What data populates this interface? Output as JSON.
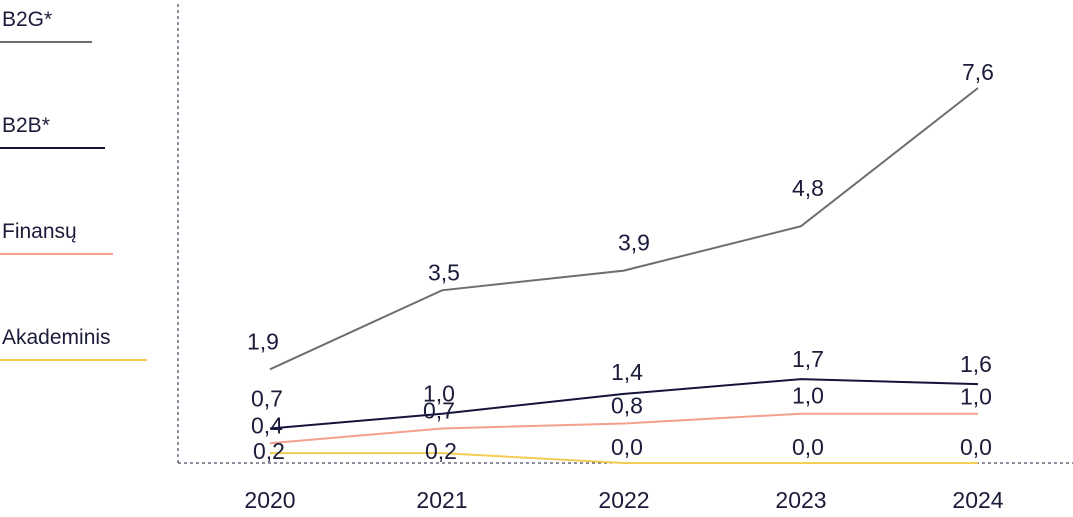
{
  "chart_data": {
    "type": "line",
    "categories": [
      "2020",
      "2021",
      "2022",
      "2023",
      "2024"
    ],
    "series": [
      {
        "name": "B2G*",
        "color": "#6e6e6e",
        "values": [
          1.9,
          3.5,
          3.9,
          4.8,
          7.6
        ],
        "labels": [
          "1,9",
          "3,5",
          "3,9",
          "4,8",
          "7,6"
        ]
      },
      {
        "name": "B2B*",
        "color": "#14143c",
        "values": [
          0.7,
          1.0,
          1.4,
          1.7,
          1.6
        ],
        "labels": [
          "0,7",
          "1,0",
          "1,4",
          "1,7",
          "1,6"
        ]
      },
      {
        "name": "Finansų",
        "color": "#f4a08c",
        "values": [
          0.4,
          0.7,
          0.8,
          1.0,
          1.0
        ],
        "labels": [
          "0,4",
          "0,7",
          "0,8",
          "1,0",
          "1,0"
        ]
      },
      {
        "name": "Akademinis",
        "color": "#f2cc55",
        "values": [
          0.2,
          0.2,
          0.0,
          0.0,
          0.0
        ],
        "labels": [
          "0,2",
          "0,2",
          "0,0",
          "0,0",
          "0,0"
        ]
      }
    ],
    "ylim": [
      0,
      8
    ],
    "grid": false,
    "legend_position": "left"
  }
}
